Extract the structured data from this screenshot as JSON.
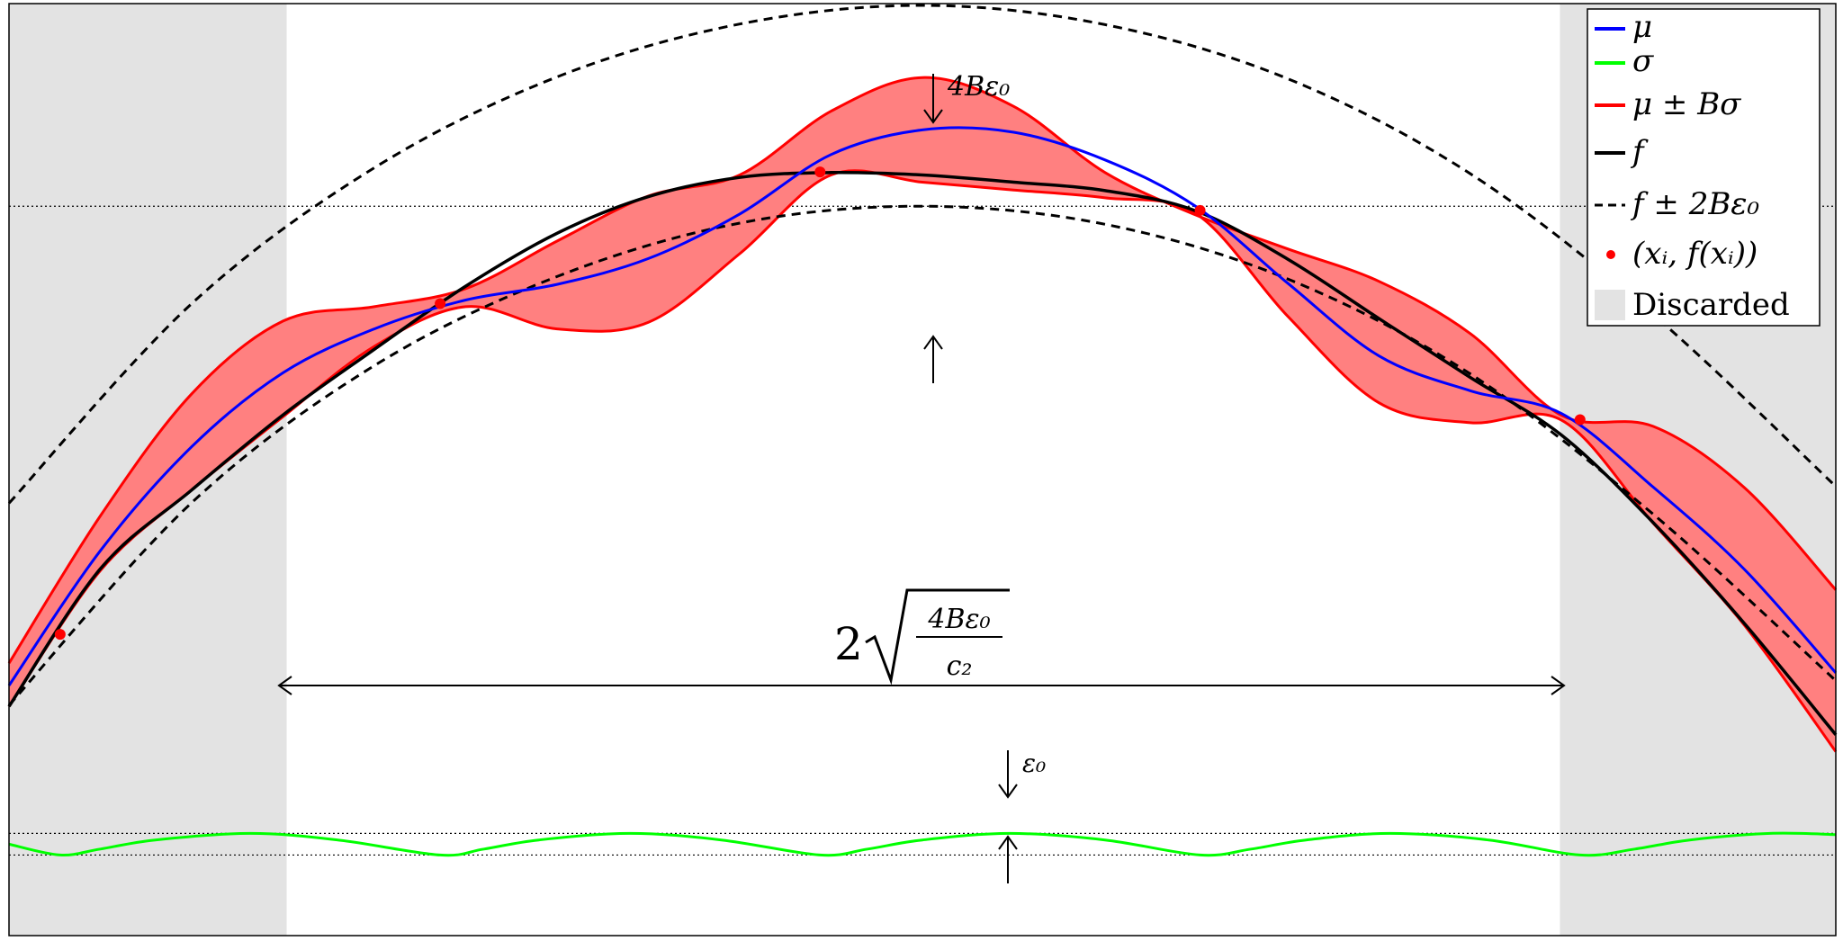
{
  "chart_data": {
    "type": "line",
    "title": "",
    "xlabel": "",
    "ylabel": "",
    "grid": false,
    "legend_position": "top-right",
    "xlim": [
      0,
      1
    ],
    "ylim": [
      -0.3,
      1.25
    ],
    "colors": {
      "mu": "#0000ff",
      "sigma": "#00ff00",
      "band_fill": "#ff8080",
      "band_edge": "#ff0000",
      "f": "#000000",
      "points": "#ff0000",
      "discarded": "#e3e3e3"
    },
    "legend": {
      "mu": "μ",
      "sigma": "σ",
      "band": "μ ± Bσ",
      "f": "f",
      "f_band": "f ± 2Bε₀",
      "points": "(xᵢ, f(xᵢ))",
      "discarded": "Discarded"
    },
    "annotations": {
      "top_gap": "4Bε₀",
      "width_coef": "2",
      "width_num": "4Bε₀",
      "width_den": "c₂",
      "sigma_gap": "ε₀"
    },
    "discarded_regions": [
      [
        0.0,
        0.152
      ],
      [
        0.849,
        1.0
      ]
    ],
    "observed_points": {
      "x": [
        0.028,
        0.236,
        0.444,
        0.652,
        0.86
      ],
      "y": [
        0.201,
        0.751,
        0.97,
        0.906,
        0.558
      ]
    },
    "f": {
      "x": [
        0,
        0.05,
        0.1,
        0.15,
        0.2,
        0.25,
        0.3,
        0.35,
        0.4,
        0.45,
        0.5,
        0.55,
        0.6,
        0.65,
        0.7,
        0.75,
        0.8,
        0.85,
        0.9,
        0.95,
        1
      ],
      "y": [
        0.081,
        0.31,
        0.441,
        0.566,
        0.675,
        0.78,
        0.868,
        0.929,
        0.961,
        0.969,
        0.965,
        0.953,
        0.939,
        0.905,
        0.825,
        0.726,
        0.628,
        0.532,
        0.387,
        0.219,
        0.034
      ]
    },
    "f_plus": {
      "x": [
        0,
        0.1,
        0.2,
        0.3,
        0.4,
        0.5,
        0.6,
        0.7,
        0.8,
        0.9,
        1
      ],
      "y": [
        0.419,
        0.751,
        0.977,
        1.128,
        1.216,
        1.247,
        1.215,
        1.125,
        0.967,
        0.733,
        0.447
      ]
    },
    "f_minus": {
      "x": [
        0,
        0.1,
        0.2,
        0.3,
        0.4,
        0.5,
        0.6,
        0.7,
        0.8,
        0.9,
        1
      ],
      "y": [
        0.083,
        0.42,
        0.648,
        0.796,
        0.885,
        0.913,
        0.883,
        0.792,
        0.634,
        0.401,
        0.124
      ]
    },
    "mu": {
      "x": [
        0,
        0.05,
        0.1,
        0.15,
        0.2,
        0.25,
        0.3,
        0.35,
        0.4,
        0.45,
        0.5,
        0.55,
        0.6,
        0.65,
        0.7,
        0.75,
        0.8,
        0.85,
        0.9,
        0.95,
        1
      ],
      "y": [
        0.116,
        0.34,
        0.513,
        0.636,
        0.709,
        0.757,
        0.783,
        0.826,
        0.9,
        0.999,
        1.04,
        1.036,
        0.99,
        0.912,
        0.785,
        0.664,
        0.606,
        0.568,
        0.446,
        0.309,
        0.137
      ]
    },
    "mu_plus": {
      "x": [
        0,
        0.05,
        0.1,
        0.15,
        0.2,
        0.25,
        0.3,
        0.35,
        0.4,
        0.45,
        0.5,
        0.55,
        0.6,
        0.65,
        0.7,
        0.75,
        0.8,
        0.85,
        0.9,
        0.95,
        1
      ],
      "y": [
        0.153,
        0.398,
        0.601,
        0.722,
        0.746,
        0.776,
        0.855,
        0.93,
        0.965,
        1.071,
        1.127,
        1.079,
        0.969,
        0.898,
        0.842,
        0.788,
        0.701,
        0.565,
        0.547,
        0.445,
        0.275
      ]
    },
    "mu_minus": {
      "x": [
        0,
        0.05,
        0.1,
        0.15,
        0.2,
        0.25,
        0.3,
        0.35,
        0.4,
        0.45,
        0.5,
        0.55,
        0.6,
        0.65,
        0.7,
        0.75,
        0.8,
        0.85,
        0.9,
        0.95,
        1
      ],
      "y": [
        0.081,
        0.307,
        0.441,
        0.563,
        0.68,
        0.746,
        0.709,
        0.72,
        0.834,
        0.965,
        0.953,
        0.94,
        0.927,
        0.9,
        0.73,
        0.586,
        0.553,
        0.557,
        0.386,
        0.216,
        0.006
      ]
    },
    "sigma": {
      "x": [
        0,
        0.028,
        0.05,
        0.08,
        0.132,
        0.18,
        0.236,
        0.26,
        0.29,
        0.34,
        0.39,
        0.444,
        0.47,
        0.5,
        0.548,
        0.6,
        0.652,
        0.68,
        0.71,
        0.756,
        0.81,
        0.86,
        0.89,
        0.92,
        0.964,
        1
      ],
      "y": [
        -0.148,
        -0.166,
        -0.156,
        -0.141,
        -0.13,
        -0.141,
        -0.166,
        -0.156,
        -0.141,
        -0.13,
        -0.141,
        -0.166,
        -0.156,
        -0.141,
        -0.13,
        -0.141,
        -0.166,
        -0.156,
        -0.141,
        -0.13,
        -0.141,
        -0.166,
        -0.156,
        -0.141,
        -0.13,
        -0.132
      ]
    },
    "reference_lines": [
      0.913,
      -0.13,
      -0.166
    ]
  }
}
